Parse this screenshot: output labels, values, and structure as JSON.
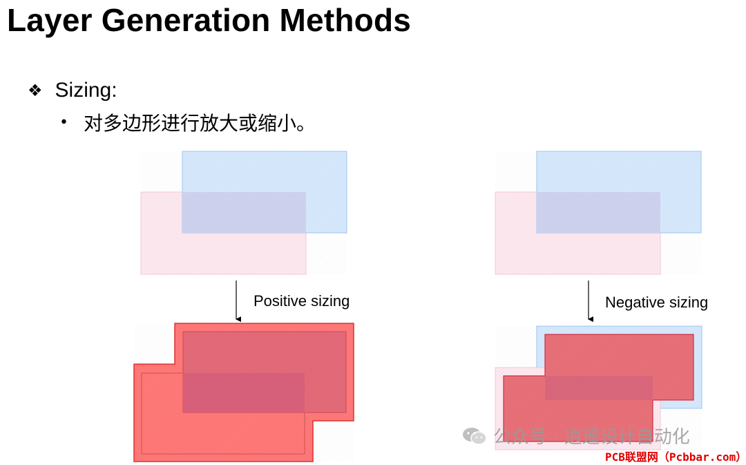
{
  "slide": {
    "title": "Layer Generation Methods",
    "bullet_main": "Sizing:",
    "bullet_sub": "对多边形进行放大或缩小。",
    "bullet_main_glyph": "❖",
    "bullet_sub_glyph": "•"
  },
  "diagram": {
    "positive_label": "Positive sizing",
    "negative_label": "Negative sizing",
    "colors": {
      "blue_fill": "#d6e8fc",
      "blue_stroke": "#9cc6f2",
      "pink_fill": "#fde8f0",
      "pink_stroke": "#f3c7d6",
      "red_fill": "#ff7878",
      "red_stroke": "#e03030",
      "overlap": "#cfd2ee"
    }
  },
  "watermark": {
    "text": "公众号 · 逍遥设计自动化",
    "icon": "wechat-icon"
  },
  "source_credit": "PCB联盟网（Pcbbar.com）"
}
